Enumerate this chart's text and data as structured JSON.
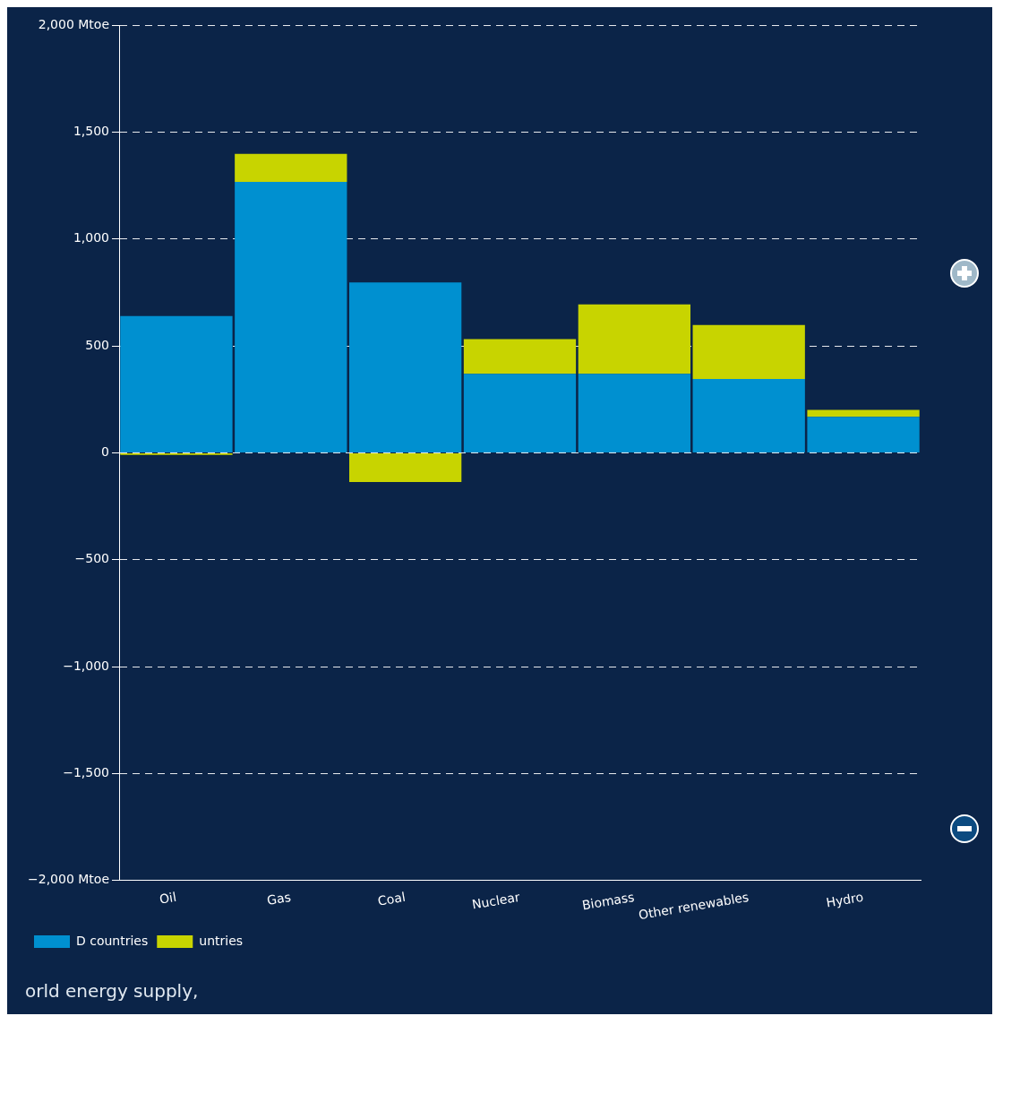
{
  "chart_data": {
    "type": "bar",
    "stacked": true,
    "categories": [
      "Oil",
      "Gas",
      "Coal",
      "Nuclear",
      "Biomass",
      "Other renewables",
      "Hydro"
    ],
    "series": [
      {
        "name": "D countries",
        "color": "#0090d0",
        "values": [
          640,
          1267,
          797,
          369,
          369,
          345,
          168
        ]
      },
      {
        "name": "untries",
        "color": "#c8d400",
        "values": [
          -10,
          131,
          -136,
          163,
          325,
          253,
          33
        ]
      }
    ],
    "ylim": [
      -2000,
      2000
    ],
    "yticks": [
      {
        "value": -2000,
        "label": "−2,000 Mtoe"
      },
      {
        "value": -1500,
        "label": "−1,500"
      },
      {
        "value": -1000,
        "label": "−1,000"
      },
      {
        "value": -500,
        "label": "−500"
      },
      0,
      500,
      {
        "value": 1000,
        "label": "1,000"
      },
      {
        "value": 1500,
        "label": "1,500"
      },
      {
        "value": 2000,
        "label": "2,000 Mtoe"
      }
    ],
    "grid": "y",
    "legend": "bottom left",
    "annotations": [
      "orld energy supply,"
    ]
  }
}
